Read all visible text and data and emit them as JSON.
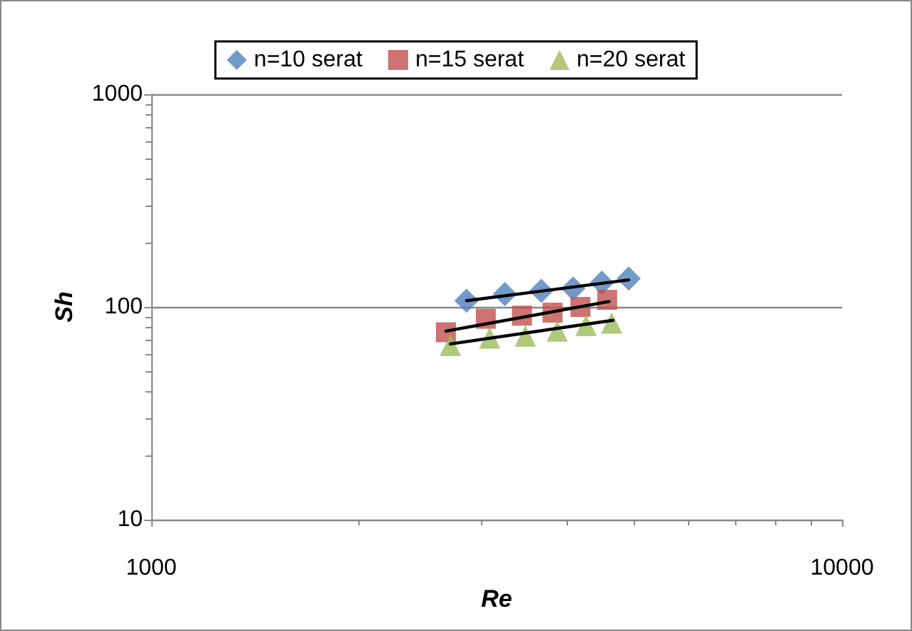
{
  "chart_data": {
    "type": "scatter",
    "xlabel": "Re",
    "ylabel": "Sh",
    "log": "xy",
    "grid": "y",
    "legend": "top",
    "xlim": [
      1000,
      10000
    ],
    "xticks": [
      1000,
      10000
    ],
    "ylim": [
      10,
      1000
    ],
    "yticks": [
      10,
      100,
      1000
    ],
    "series": [
      {
        "name": "n=10 serat",
        "color": "#4f81bd",
        "marker": "diamond",
        "x": [
          2860,
          3250,
          3670,
          4080,
          4490,
          4910
        ],
        "values": [
          107,
          115,
          119,
          122,
          130,
          136
        ]
      },
      {
        "name": "n=15 serat",
        "color": "#c0504d",
        "marker": "square",
        "x": [
          2670,
          3050,
          3440,
          3810,
          4180,
          4570
        ],
        "values": [
          76,
          88,
          91,
          94,
          100,
          108
        ]
      },
      {
        "name": "n=20 serat",
        "color": "#9bbb59",
        "marker": "triangle",
        "x": [
          2710,
          3090,
          3480,
          3870,
          4260,
          4640
        ],
        "values": [
          66,
          71.5,
          73,
          77,
          82,
          84
        ]
      },
      {
        "type": "line",
        "color": "#000000",
        "marker": "none",
        "x": [
          2860,
          4910
        ],
        "values": [
          107,
          134
        ]
      },
      {
        "type": "line",
        "color": "#000000",
        "marker": "none",
        "x": [
          2670,
          4600
        ],
        "values": [
          77,
          106
        ]
      },
      {
        "type": "line",
        "color": "#000000",
        "marker": "none",
        "x": [
          2710,
          4660
        ],
        "values": [
          67,
          86.5
        ]
      }
    ]
  }
}
